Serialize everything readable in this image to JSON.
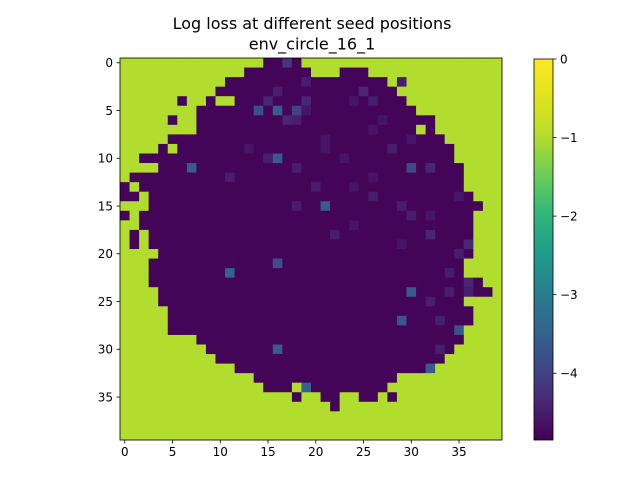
{
  "chart_data": {
    "type": "heatmap",
    "title": "Log loss at different seed positions",
    "subtitle": "env_circle_16_1",
    "xlabel": "",
    "ylabel": "",
    "x_ticks": [
      "0",
      "5",
      "10",
      "15",
      "20",
      "25",
      "30",
      "35"
    ],
    "y_ticks": [
      "0",
      "5",
      "10",
      "15",
      "20",
      "25",
      "30",
      "35"
    ],
    "colorbar_ticks": [
      "0",
      "−1",
      "−2",
      "−3",
      "−4"
    ],
    "colorbar_range": [
      -4.85,
      0
    ],
    "grid_size": [
      40,
      40
    ],
    "colormap": "viridis",
    "background_value": -1,
    "inner_value": -4.8,
    "region": {
      "row_start": 0,
      "row_end": 36,
      "spans": [
        [
          13,
          18
        ],
        [
          11,
          27
        ],
        [
          9,
          28
        ],
        [
          9,
          29
        ],
        [
          5,
          30
        ],
        [
          5,
          31
        ],
        [
          5,
          32
        ],
        [
          6,
          33
        ],
        [
          3,
          33
        ],
        [
          3,
          34
        ],
        [
          0,
          34
        ],
        [
          3,
          35
        ],
        [
          0,
          35
        ],
        [
          0,
          35
        ],
        [
          0,
          36
        ],
        [
          2,
          38
        ],
        [
          0,
          38
        ],
        [
          2,
          36
        ],
        [
          1,
          36
        ],
        [
          1,
          37
        ],
        [
          3,
          36
        ],
        [
          3,
          36
        ],
        [
          3,
          37
        ],
        [
          3,
          39
        ],
        [
          4,
          38
        ],
        [
          4,
          37
        ],
        [
          5,
          36
        ],
        [
          5,
          36
        ],
        [
          5,
          35
        ],
        [
          8,
          35
        ],
        [
          9,
          34
        ],
        [
          10,
          33
        ],
        [
          12,
          32
        ],
        [
          14,
          31
        ],
        [
          15,
          29
        ],
        [
          18,
          28
        ],
        [
          22,
          22
        ]
      ],
      "holes": [
        [
          0,
          13
        ],
        [
          0,
          14
        ],
        [
          0,
          17
        ],
        [
          1,
          11
        ],
        [
          1,
          12
        ],
        [
          1,
          20
        ],
        [
          1,
          21
        ],
        [
          1,
          22
        ],
        [
          1,
          26
        ],
        [
          1,
          27
        ],
        [
          2,
          9
        ],
        [
          2,
          10
        ],
        [
          2,
          28
        ],
        [
          3,
          9
        ],
        [
          3,
          29
        ],
        [
          4,
          5
        ],
        [
          4,
          7
        ],
        [
          4,
          8
        ],
        [
          4,
          10
        ],
        [
          4,
          11
        ],
        [
          4,
          30
        ],
        [
          5,
          5
        ],
        [
          5,
          6
        ],
        [
          5,
          7
        ],
        [
          5,
          31
        ],
        [
          5,
          32
        ],
        [
          6,
          6
        ],
        [
          6,
          7
        ],
        [
          6,
          33
        ],
        [
          7,
          6
        ],
        [
          7,
          7
        ],
        [
          7,
          31
        ],
        [
          7,
          33
        ],
        [
          8,
          3
        ],
        [
          8,
          4
        ],
        [
          8,
          34
        ],
        [
          8,
          35
        ],
        [
          9,
          3
        ],
        [
          9,
          5
        ],
        [
          9,
          35
        ],
        [
          10,
          0
        ],
        [
          10,
          1
        ],
        [
          10,
          35
        ],
        [
          11,
          3
        ],
        [
          12,
          0
        ],
        [
          13,
          1
        ],
        [
          14,
          2
        ],
        [
          14,
          38
        ],
        [
          14,
          39
        ],
        [
          15,
          2
        ],
        [
          15,
          38
        ],
        [
          15,
          39
        ],
        [
          16,
          1
        ],
        [
          16,
          37
        ],
        [
          16,
          38
        ],
        [
          16,
          39
        ],
        [
          17,
          0
        ],
        [
          17,
          37
        ],
        [
          18,
          2
        ],
        [
          18,
          37
        ],
        [
          19,
          2
        ],
        [
          19,
          37
        ],
        [
          20,
          1
        ],
        [
          20,
          3
        ],
        [
          20,
          38
        ],
        [
          21,
          0
        ],
        [
          21,
          36
        ],
        [
          22,
          1
        ],
        [
          22,
          2
        ],
        [
          22,
          36
        ],
        [
          22,
          37
        ],
        [
          23,
          0
        ],
        [
          23,
          1
        ],
        [
          23,
          2
        ],
        [
          23,
          38
        ],
        [
          23,
          39
        ],
        [
          24,
          0
        ],
        [
          24,
          1
        ],
        [
          24,
          2
        ],
        [
          24,
          3
        ],
        [
          24,
          39
        ],
        [
          25,
          0
        ],
        [
          25,
          1
        ],
        [
          25,
          2
        ],
        [
          25,
          3
        ],
        [
          25,
          36
        ],
        [
          25,
          37
        ],
        [
          25,
          38
        ],
        [
          26,
          38
        ],
        [
          27,
          37
        ],
        [
          27,
          38
        ],
        [
          28,
          36
        ],
        [
          28,
          37
        ],
        [
          29,
          36
        ],
        [
          29,
          37
        ],
        [
          29,
          38
        ],
        [
          29,
          39
        ],
        [
          30,
          35
        ],
        [
          30,
          36
        ],
        [
          30,
          38
        ],
        [
          30,
          39
        ],
        [
          31,
          34
        ],
        [
          31,
          35
        ],
        [
          32,
          33
        ],
        [
          32,
          34
        ],
        [
          33,
          29
        ],
        [
          33,
          30
        ],
        [
          33,
          31
        ],
        [
          33,
          32
        ],
        [
          34,
          18
        ],
        [
          34,
          28
        ],
        [
          34,
          29
        ],
        [
          35,
          19
        ],
        [
          35,
          20
        ],
        [
          35,
          23
        ],
        [
          35,
          24
        ],
        [
          35,
          27
        ]
      ],
      "cell_values": [
        [
          0,
          17,
          -4.2
        ],
        [
          2,
          19,
          -4.5
        ],
        [
          2,
          29,
          -4.5
        ],
        [
          3,
          16,
          -4.5
        ],
        [
          3,
          25,
          -4.4
        ],
        [
          4,
          15,
          -4.4
        ],
        [
          4,
          19,
          -4.4
        ],
        [
          4,
          24,
          -4.6
        ],
        [
          4,
          26,
          -4.5
        ],
        [
          5,
          14,
          -3.8
        ],
        [
          5,
          16,
          -3.6
        ],
        [
          5,
          18,
          -4.0
        ],
        [
          5,
          19,
          -4.6
        ],
        [
          6,
          17,
          -4.4
        ],
        [
          6,
          18,
          -4.5
        ],
        [
          6,
          27,
          -4.6
        ],
        [
          7,
          26,
          -4.6
        ],
        [
          8,
          21,
          -4.6
        ],
        [
          8,
          30,
          -4.6
        ],
        [
          9,
          13,
          -4.6
        ],
        [
          9,
          21,
          -4.6
        ],
        [
          9,
          28,
          -4.5
        ],
        [
          10,
          15,
          -4.5
        ],
        [
          10,
          16,
          -3.6
        ],
        [
          10,
          23,
          -4.6
        ],
        [
          11,
          7,
          -3.6
        ],
        [
          11,
          18,
          -4.5
        ],
        [
          11,
          30,
          -3.9
        ],
        [
          11,
          32,
          -4.4
        ],
        [
          12,
          11,
          -4.5
        ],
        [
          12,
          26,
          -4.6
        ],
        [
          13,
          20,
          -4.5
        ],
        [
          13,
          24,
          -4.6
        ],
        [
          14,
          26,
          -4.5
        ],
        [
          14,
          35,
          -4.6
        ],
        [
          15,
          18,
          -4.5
        ],
        [
          15,
          21,
          -3.6
        ],
        [
          15,
          29,
          -4.5
        ],
        [
          16,
          30,
          -4.5
        ],
        [
          16,
          32,
          -4.6
        ],
        [
          17,
          24,
          -4.6
        ],
        [
          18,
          22,
          -4.5
        ],
        [
          18,
          32,
          -4.4
        ],
        [
          19,
          29,
          -4.6
        ],
        [
          19,
          36,
          -4.4
        ],
        [
          20,
          35,
          -4.5
        ],
        [
          21,
          16,
          -3.8
        ],
        [
          22,
          11,
          -3.5
        ],
        [
          22,
          34,
          -4.5
        ],
        [
          23,
          36,
          -4.4
        ],
        [
          24,
          30,
          -3.6
        ],
        [
          24,
          34,
          -4.5
        ],
        [
          24,
          36,
          -4.5
        ],
        [
          25,
          32,
          -4.5
        ],
        [
          27,
          29,
          -3.7
        ],
        [
          27,
          33,
          -4.5
        ],
        [
          28,
          35,
          -3.7
        ],
        [
          30,
          16,
          -3.6
        ],
        [
          30,
          33,
          -4.5
        ],
        [
          32,
          32,
          -3.6
        ],
        [
          34,
          19,
          -3.5
        ]
      ]
    }
  }
}
